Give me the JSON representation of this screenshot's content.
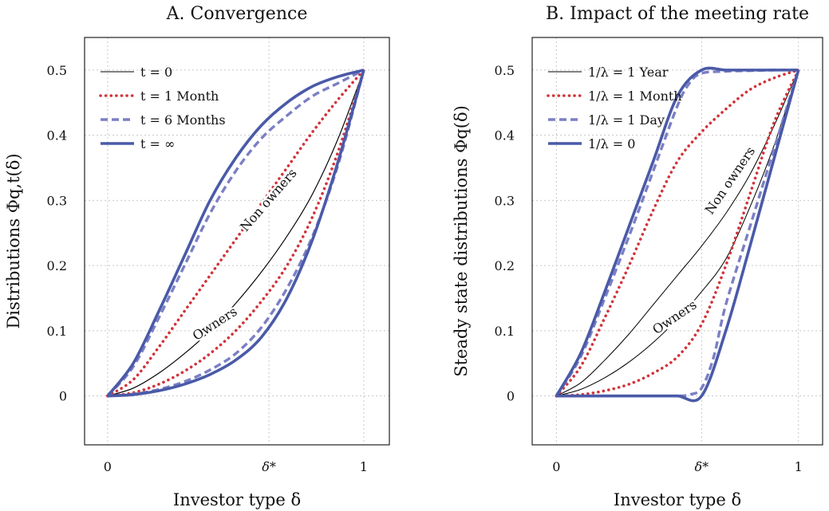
{
  "chart_data": [
    {
      "type": "line",
      "title": "A. Convergence",
      "xlabel": "Investor type δ",
      "ylabel": "Distributions Φq,t(δ)",
      "xlim": [
        -0.09,
        1.1
      ],
      "ylim": [
        -0.075,
        0.55
      ],
      "x_ticks": [
        {
          "value": 0,
          "label": "0"
        },
        {
          "value": 0.63,
          "label": "δ*"
        },
        {
          "value": 1,
          "label": "1"
        }
      ],
      "y_ticks": [
        {
          "value": 0,
          "label": "0"
        },
        {
          "value": 0.1,
          "label": "0.1"
        },
        {
          "value": 0.2,
          "label": "0.2"
        },
        {
          "value": 0.3,
          "label": "0.3"
        },
        {
          "value": 0.4,
          "label": "0.4"
        },
        {
          "value": 0.5,
          "label": "0.5"
        }
      ],
      "grid": true,
      "legend_position": "top-left",
      "series": [
        {
          "name": "t = 0",
          "style": "thin",
          "color": "#000000",
          "upper": {
            "x": [
              0,
              0.1,
              0.2,
              0.3,
              0.4,
              0.5,
              0.6,
              0.7,
              0.8,
              0.9,
              1
            ],
            "y": [
              0,
              0.012,
              0.035,
              0.065,
              0.1,
              0.142,
              0.19,
              0.245,
              0.31,
              0.395,
              0.5
            ]
          },
          "lower": {
            "x": [
              0,
              0.1,
              0.2,
              0.3,
              0.4,
              0.5,
              0.6,
              0.7,
              0.8,
              0.9,
              1
            ],
            "y": [
              0,
              0.012,
              0.035,
              0.065,
              0.1,
              0.142,
              0.19,
              0.245,
              0.31,
              0.395,
              0.5
            ]
          }
        },
        {
          "name": "t = 1 Month",
          "style": "dotted",
          "color": "#d1343a",
          "upper": {
            "x": [
              0,
              0.1,
              0.2,
              0.3,
              0.4,
              0.5,
              0.6,
              0.7,
              0.8,
              0.9,
              1
            ],
            "y": [
              0,
              0.025,
              0.075,
              0.13,
              0.185,
              0.24,
              0.295,
              0.35,
              0.405,
              0.455,
              0.5
            ]
          },
          "lower": {
            "x": [
              0,
              0.1,
              0.2,
              0.3,
              0.4,
              0.5,
              0.6,
              0.7,
              0.8,
              0.9,
              1
            ],
            "y": [
              0,
              0.005,
              0.018,
              0.038,
              0.065,
              0.1,
              0.145,
              0.2,
              0.275,
              0.375,
              0.5
            ]
          }
        },
        {
          "name": "t = 6 Months",
          "style": "dashed",
          "color": "#7b7fc4",
          "upper": {
            "x": [
              0,
              0.1,
              0.2,
              0.3,
              0.4,
              0.5,
              0.6,
              0.7,
              0.8,
              0.9,
              1
            ],
            "y": [
              0,
              0.045,
              0.12,
              0.2,
              0.28,
              0.345,
              0.395,
              0.43,
              0.46,
              0.48,
              0.5
            ]
          },
          "lower": {
            "x": [
              0,
              0.1,
              0.2,
              0.3,
              0.4,
              0.5,
              0.6,
              0.7,
              0.8,
              0.9,
              1
            ],
            "y": [
              0,
              0.003,
              0.01,
              0.022,
              0.04,
              0.065,
              0.105,
              0.165,
              0.245,
              0.355,
              0.5
            ]
          }
        },
        {
          "name": "t = ∞",
          "style": "thick",
          "color": "#4a5aa8",
          "upper": {
            "x": [
              0,
              0.1,
              0.2,
              0.3,
              0.4,
              0.5,
              0.6,
              0.7,
              0.8,
              0.9,
              1
            ],
            "y": [
              0,
              0.05,
              0.13,
              0.215,
              0.3,
              0.365,
              0.415,
              0.45,
              0.475,
              0.49,
              0.5
            ]
          },
          "lower": {
            "x": [
              0,
              0.1,
              0.2,
              0.3,
              0.4,
              0.5,
              0.6,
              0.7,
              0.8,
              0.9,
              1
            ],
            "y": [
              0,
              0.002,
              0.008,
              0.018,
              0.033,
              0.055,
              0.09,
              0.15,
              0.24,
              0.36,
              0.5
            ]
          }
        }
      ],
      "annotations": [
        {
          "text": "Non owners",
          "x": 0.63,
          "y": 0.3,
          "angle": -49
        },
        {
          "text": "Owners",
          "x": 0.42,
          "y": 0.11,
          "angle": -33
        }
      ]
    },
    {
      "type": "line",
      "title": "B. Impact of the meeting rate",
      "xlabel": "Investor type δ",
      "ylabel": "Steady state distributions Φq(δ)",
      "xlim": [
        -0.1,
        1.1
      ],
      "ylim": [
        -0.075,
        0.55
      ],
      "x_ticks": [
        {
          "value": 0,
          "label": "0"
        },
        {
          "value": 0.6,
          "label": "δ*"
        },
        {
          "value": 1,
          "label": "1"
        }
      ],
      "y_ticks": [
        {
          "value": 0,
          "label": "0"
        },
        {
          "value": 0.1,
          "label": "0.1"
        },
        {
          "value": 0.2,
          "label": "0.2"
        },
        {
          "value": 0.3,
          "label": "0.3"
        },
        {
          "value": 0.4,
          "label": "0.4"
        },
        {
          "value": 0.5,
          "label": "0.5"
        }
      ],
      "grid": true,
      "legend_position": "top-left",
      "series": [
        {
          "name": "1/λ = 1 Year",
          "style": "thin",
          "color": "#000000",
          "upper": {
            "x": [
              0,
              0.1,
              0.2,
              0.3,
              0.4,
              0.5,
              0.6,
              0.7,
              0.8,
              0.9,
              1
            ],
            "y": [
              0,
              0.02,
              0.055,
              0.095,
              0.14,
              0.185,
              0.23,
              0.28,
              0.34,
              0.415,
              0.5
            ]
          },
          "lower": {
            "x": [
              0,
              0.1,
              0.2,
              0.3,
              0.4,
              0.5,
              0.6,
              0.7,
              0.8,
              0.9,
              1
            ],
            "y": [
              0,
              0.01,
              0.028,
              0.052,
              0.082,
              0.118,
              0.16,
              0.21,
              0.29,
              0.385,
              0.5
            ]
          }
        },
        {
          "name": "1/λ = 1 Month",
          "style": "dotted",
          "color": "#d1343a",
          "upper": {
            "x": [
              0,
              0.1,
              0.2,
              0.3,
              0.4,
              0.5,
              0.6,
              0.7,
              0.8,
              0.9,
              1
            ],
            "y": [
              0,
              0.045,
              0.12,
              0.2,
              0.285,
              0.36,
              0.405,
              0.44,
              0.47,
              0.488,
              0.5
            ]
          },
          "lower": {
            "x": [
              0,
              0.1,
              0.2,
              0.3,
              0.4,
              0.5,
              0.6,
              0.7,
              0.8,
              0.9,
              1
            ],
            "y": [
              0,
              0.002,
              0.008,
              0.018,
              0.035,
              0.06,
              0.11,
              0.2,
              0.31,
              0.42,
              0.5
            ]
          }
        },
        {
          "name": "1/λ = 1 Day",
          "style": "dashed",
          "color": "#7b7fc4",
          "upper": {
            "x": [
              0,
              0.1,
              0.2,
              0.3,
              0.4,
              0.5,
              0.55,
              0.6,
              0.7,
              0.8,
              0.9,
              1
            ],
            "y": [
              0,
              0.06,
              0.15,
              0.245,
              0.345,
              0.445,
              0.48,
              0.495,
              0.498,
              0.499,
              0.5,
              0.5
            ]
          },
          "lower": {
            "x": [
              0,
              0.1,
              0.2,
              0.3,
              0.4,
              0.5,
              0.55,
              0.6,
              0.65,
              0.7,
              0.8,
              0.9,
              1
            ],
            "y": [
              0,
              0,
              0,
              0,
              0,
              0,
              0.002,
              0.012,
              0.06,
              0.14,
              0.26,
              0.38,
              0.5
            ]
          }
        },
        {
          "name": "1/λ = 0",
          "style": "thick",
          "color": "#4a5aa8",
          "upper": {
            "x": [
              0,
              0.1,
              0.2,
              0.3,
              0.4,
              0.5,
              0.6,
              0.7,
              0.8,
              0.9,
              1
            ],
            "y": [
              0,
              0.065,
              0.16,
              0.26,
              0.36,
              0.46,
              0.5,
              0.5,
              0.5,
              0.5,
              0.5
            ]
          },
          "lower": {
            "x": [
              0,
              0.1,
              0.2,
              0.3,
              0.4,
              0.5,
              0.6,
              0.7,
              0.8,
              0.9,
              1
            ],
            "y": [
              0,
              0,
              0,
              0,
              0,
              0,
              0,
              0.1,
              0.23,
              0.365,
              0.5
            ]
          }
        }
      ],
      "annotations": [
        {
          "text": "Non owners",
          "x": 0.72,
          "y": 0.33,
          "angle": -56
        },
        {
          "text": "Owners",
          "x": 0.49,
          "y": 0.12,
          "angle": -34
        }
      ]
    }
  ]
}
